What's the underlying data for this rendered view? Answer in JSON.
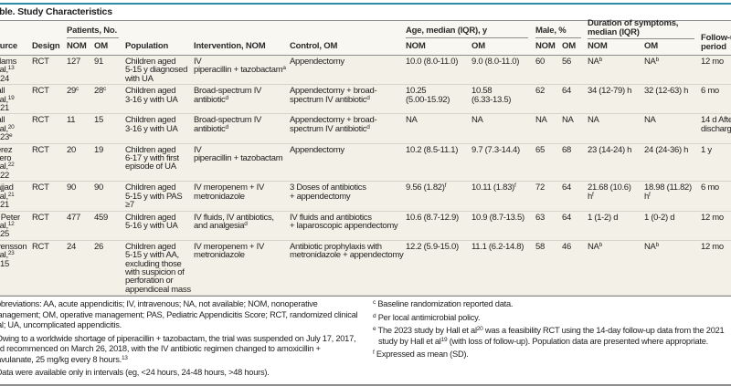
{
  "title": "Table. Study Characteristics",
  "colors": {
    "accent": "#2f8aa6",
    "body_bg": "#f3f1e7"
  },
  "header": {
    "source": "Source",
    "design": "Design",
    "patients": "Patients, No.",
    "population": "Population",
    "intervention": "Intervention, NOM",
    "control": "Control, OM",
    "age": "Age, median (IQR), y",
    "male": "Male, %",
    "duration": "Duration of symptoms,\nmedian (IQR)",
    "followup": "Follow-up\nperiod",
    "nom": "NOM",
    "om": "OM"
  },
  "rows": [
    {
      "source": {
        "name": "Adams",
        "etal": "et al,",
        "ref": "13",
        "year": "2024",
        "ysup": ""
      },
      "cells": [
        {
          "t": "RCT"
        },
        {
          "t": "127"
        },
        {
          "t": "91"
        },
        {
          "t": "Children aged\n5-15 y diagnosed\nwith UA"
        },
        {
          "t": "IV\npiperacillin + tazobactam",
          "s": "a"
        },
        {
          "t": "Appendectomy"
        },
        {
          "t": "10.0 (8.0-11.0)"
        },
        {
          "t": "9.0 (8.0-11.0)"
        },
        {
          "t": "60"
        },
        {
          "t": "56"
        },
        {
          "t": "NA",
          "s": "b"
        },
        {
          "t": "NA",
          "s": "b"
        },
        {
          "t": "12 mo"
        }
      ]
    },
    {
      "source": {
        "name": "Hall",
        "etal": "et al,",
        "ref": "19",
        "year": "2021",
        "ysup": ""
      },
      "cells": [
        {
          "t": "RCT"
        },
        {
          "t": "29",
          "s": "c"
        },
        {
          "t": "28",
          "s": "c"
        },
        {
          "t": "Children aged\n3-16 y with UA"
        },
        {
          "t": "Broad-spectrum IV\nantibiotic",
          "s": "d"
        },
        {
          "t": "Appendectomy + broad-\nspectrum IV antibiotic",
          "s": "d"
        },
        {
          "t": "10.25\n(5.00-15.92)"
        },
        {
          "t": "10.58\n(6.33-13.5)"
        },
        {
          "t": "62"
        },
        {
          "t": "64"
        },
        {
          "t": "34 (12-79) h"
        },
        {
          "t": "32 (12-63) h"
        },
        {
          "t": "6 mo"
        }
      ]
    },
    {
      "source": {
        "name": "Hall",
        "etal": "et al,",
        "ref": "20",
        "year": "2023",
        "ysup": "e"
      },
      "cells": [
        {
          "t": "RCT"
        },
        {
          "t": "11"
        },
        {
          "t": "15"
        },
        {
          "t": "Children aged\n3-16 y with UA"
        },
        {
          "t": "Broad-spectrum IV\nantibiotic",
          "s": "d"
        },
        {
          "t": "Appendectomy + broad-\nspectrum IV antibiotic",
          "s": "d"
        },
        {
          "t": "NA"
        },
        {
          "t": "NA"
        },
        {
          "t": "NA"
        },
        {
          "t": "NA"
        },
        {
          "t": "NA"
        },
        {
          "t": "NA"
        },
        {
          "t": "14 d After\ndischarge"
        }
      ]
    },
    {
      "source": {
        "name": "Perez\nOtero",
        "etal": "et al,",
        "ref": "22",
        "year": "2022",
        "ysup": ""
      },
      "cells": [
        {
          "t": "RCT"
        },
        {
          "t": "20"
        },
        {
          "t": "19"
        },
        {
          "t": "Children aged\n6-17 y with first\nepisode of UA"
        },
        {
          "t": "IV\npiperacillin + tazobactam"
        },
        {
          "t": "Appendectomy"
        },
        {
          "t": "10.2 (8.5-11.1)"
        },
        {
          "t": "9.7 (7.3-14.4)"
        },
        {
          "t": "65"
        },
        {
          "t": "68"
        },
        {
          "t": "23 (14-24) h"
        },
        {
          "t": "24 (24-36) h"
        },
        {
          "t": "1 y"
        }
      ]
    },
    {
      "source": {
        "name": "Sajjad",
        "etal": "et al,",
        "ref": "21",
        "year": "2021",
        "ysup": ""
      },
      "cells": [
        {
          "t": "RCT"
        },
        {
          "t": "90"
        },
        {
          "t": "90"
        },
        {
          "t": "Children aged\n5-15 y with PAS\n≥7"
        },
        {
          "t": "IV meropenem + IV\nmetronidazole"
        },
        {
          "t": "3 Doses of antibiotics\n + appendectomy"
        },
        {
          "t": "9.56 (1.82)",
          "s": "f"
        },
        {
          "t": "10.11 (1.83)",
          "s": "f"
        },
        {
          "t": "72"
        },
        {
          "t": "64"
        },
        {
          "t": "21.68 (10.6)\nh",
          "s": "f"
        },
        {
          "t": "18.98 (11.82)\nh",
          "s": "f"
        },
        {
          "t": "6 mo"
        }
      ]
    },
    {
      "source": {
        "name": "St Peter",
        "etal": "et al,",
        "ref": "12",
        "year": "2025",
        "ysup": ""
      },
      "cells": [
        {
          "t": "RCT"
        },
        {
          "t": "477"
        },
        {
          "t": "459"
        },
        {
          "t": "Children aged\n5-16 y with UA"
        },
        {
          "t": "IV fluids, IV antibiotics,\nand analgesia",
          "s": "d"
        },
        {
          "t": "IV fluids and antibiotics\n + laparoscopic appendectomy"
        },
        {
          "t": "10.6 (8.7-12.9)"
        },
        {
          "t": "10.9 (8.7-13.5)"
        },
        {
          "t": "63"
        },
        {
          "t": "64"
        },
        {
          "t": "1 (1-2) d"
        },
        {
          "t": "1 (0-2) d"
        },
        {
          "t": "12 mo"
        }
      ]
    },
    {
      "source": {
        "name": "Svensson",
        "etal": "et al,",
        "ref": "23",
        "year": "2015",
        "ysup": ""
      },
      "cells": [
        {
          "t": "RCT"
        },
        {
          "t": "24"
        },
        {
          "t": "26"
        },
        {
          "t": "Children aged\n5-15 y with AA,\nexcluding those\nwith suspicion of\nperforation or\nappendiceal mass"
        },
        {
          "t": "IV meropenem + IV\nmetronidazole"
        },
        {
          "t": "Antibiotic prophylaxis with\nmetronidazole + appendectomy"
        },
        {
          "t": "12.2 (5.9-15.0)"
        },
        {
          "t": "11.1 (6.2-14.8)"
        },
        {
          "t": "58"
        },
        {
          "t": "46"
        },
        {
          "t": "NA",
          "s": "b"
        },
        {
          "t": "NA",
          "s": "b"
        },
        {
          "t": "12 mo"
        }
      ]
    }
  ],
  "footnotes": {
    "abbreviations": "Abbreviations: AA, acute appendicitis; IV, intravenous; NA, not available; NOM, nonoperative management; OM, operative management; PAS, Pediatric Appendicitis Score; RCT, randomized clinical trial; UA, uncomplicated appendicitis.",
    "a": {
      "mark": "a",
      "text": "Owing to a worldwide shortage of piperacillin + tazobactam, the trial was suspended on July 17, 2017, and recommenced on March 26, 2018, with the IV antibiotic regimen changed to amoxicillin + clavulanate, 25 mg/kg every 8 hours.",
      "ref": "13"
    },
    "b": {
      "mark": "b",
      "text": "Data were available only in intervals (eg, <24 hours, 24-48 hours, >48 hours)."
    },
    "c": {
      "mark": "c",
      "text": "Baseline randomization reported data."
    },
    "d": {
      "mark": "d",
      "text": "Per local antimicrobial policy."
    },
    "e": {
      "mark": "e",
      "t1": "The 2023 study by Hall et al",
      "r1": "20",
      "t2": " was a feasibility RCT using the 14-day follow-up data from the 2021 study by Hall et al",
      "r2": "19",
      "t3": " (with loss of follow-up). Population data are presented where appropriate."
    },
    "f": {
      "mark": "f",
      "text": "Expressed as mean (SD)."
    }
  }
}
